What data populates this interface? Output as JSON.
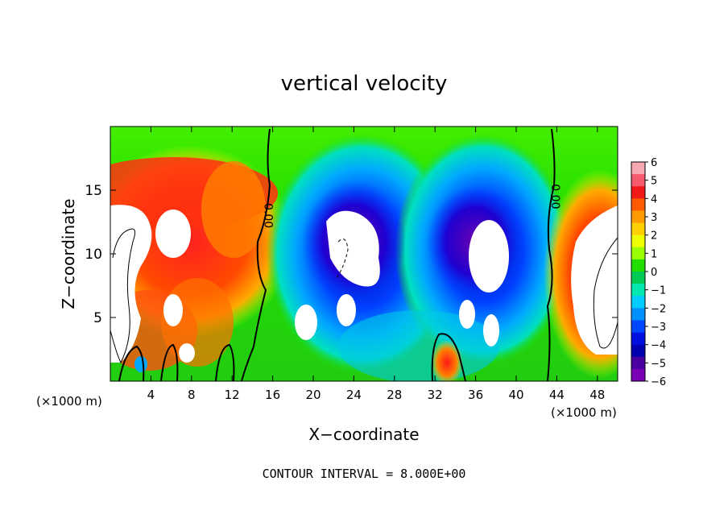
{
  "chart_data": {
    "type": "heatmap",
    "title": "vertical velocity",
    "xlabel": "X−coordinate",
    "ylabel": "Z−coordinate",
    "x_unit_left": "(×1000 m)",
    "x_unit_right": "(×1000 m)",
    "footer": "CONTOUR INTERVAL = 8.000E+00",
    "xlim": [
      0,
      50
    ],
    "ylim": [
      0,
      20
    ],
    "x_ticks": [
      "4",
      "8",
      "12",
      "16",
      "20",
      "24",
      "28",
      "32",
      "36",
      "40",
      "44",
      "48"
    ],
    "x_tick_values": [
      4,
      8,
      12,
      16,
      20,
      24,
      28,
      32,
      36,
      40,
      44,
      48
    ],
    "y_ticks": [
      "5",
      "10",
      "15"
    ],
    "y_tick_values": [
      5,
      10,
      15
    ],
    "colorbar": {
      "min": -6,
      "max": 6,
      "labels": [
        "6",
        "5",
        "4",
        "3",
        "2",
        "1",
        "0",
        "−1",
        "−2",
        "−3",
        "−4",
        "−5",
        "−6"
      ],
      "values": [
        6,
        5,
        4,
        3,
        2,
        1,
        0,
        -1,
        -2,
        -3,
        -4,
        -5,
        -6
      ],
      "colors": [
        "#f7a8b0",
        "#f55a6e",
        "#f21818",
        "#ff5a00",
        "#ff9a00",
        "#ffd000",
        "#eeff00",
        "#9aff00",
        "#22dd00",
        "#00cc55",
        "#00e8b0",
        "#00ccff",
        "#0090ff",
        "#0048ff",
        "#0010e0",
        "#0000b0",
        "#4a00a0",
        "#7a00b8"
      ]
    },
    "contour_labels": [
      {
        "x": 15.2,
        "z": 13,
        "text": "0.00"
      },
      {
        "x": 43.5,
        "z": 14.5,
        "text": "0.00"
      }
    ]
  }
}
